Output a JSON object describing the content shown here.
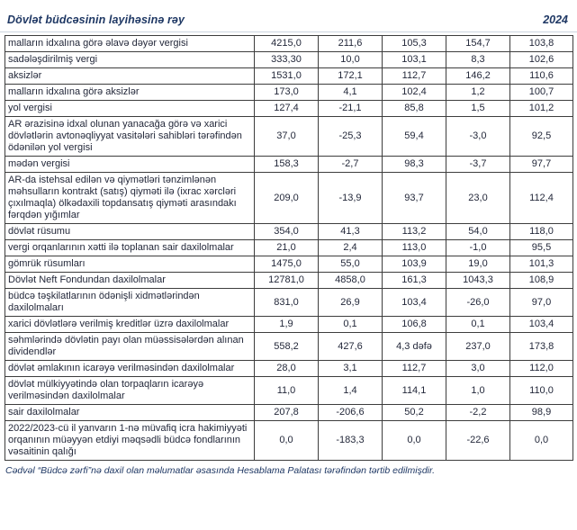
{
  "header": {
    "title": "Dövlət büdcəsinin layihəsinə rəy",
    "year": "2024"
  },
  "colors": {
    "accent": "#1f3864",
    "text": "#23283a",
    "negative": "#e01010",
    "border": "#3d3d3d"
  },
  "table": {
    "rows": [
      {
        "label": "malların idxalına görə əlavə dəyər vergisi",
        "values": [
          "4215,0",
          "211,6",
          "105,3",
          "154,7",
          "103,8"
        ]
      },
      {
        "label": "sadələşdirilmiş vergi",
        "values": [
          "333,30",
          "10,0",
          "103,1",
          "8,3",
          "102,6"
        ]
      },
      {
        "label": "aksizlər",
        "values": [
          "1531,0",
          "172,1",
          "112,7",
          "146,2",
          "110,6"
        ]
      },
      {
        "label": "malların idxalına görə aksizlər",
        "values": [
          "173,0",
          "4,1",
          "102,4",
          "1,2",
          "100,7"
        ]
      },
      {
        "label": "yol vergisi",
        "values": [
          "127,4",
          "-21,1",
          "85,8",
          "1,5",
          "101,2"
        ]
      },
      {
        "label": "AR ərazisinə idxal olunan yanacağa görə və xarici dövlətlərin avtonəqliyyat vasitələri sahibləri tərəfindən ödənilən yol vergisi",
        "values": [
          "37,0",
          "-25,3",
          "59,4",
          "-3,0",
          "92,5"
        ]
      },
      {
        "label": "mədən vergisi",
        "values": [
          "158,3",
          "-2,7",
          "98,3",
          "-3,7",
          "97,7"
        ]
      },
      {
        "label": "AR-da istehsal edilən və qiymətləri tənzimlənən məhsulların kontrakt (satış) qiyməti ilə (ixrac xərcləri çıxılmaqla) ölkədaxili topdansatış qiyməti arasındakı fərqdən yığımlar",
        "values": [
          "209,0",
          "-13,9",
          "93,7",
          "23,0",
          "112,4"
        ]
      },
      {
        "label": "dövlət rüsumu",
        "values": [
          "354,0",
          "41,3",
          "113,2",
          "54,0",
          "118,0"
        ]
      },
      {
        "label": "vergi orqanlarının xətti ilə toplanan sair daxilolmalar",
        "values": [
          "21,0",
          "2,4",
          "113,0",
          "-1,0",
          "95,5"
        ]
      },
      {
        "label": "gömrük rüsumları",
        "values": [
          "1475,0",
          "55,0",
          "103,9",
          "19,0",
          "101,3"
        ]
      },
      {
        "label": "Dövlət Neft Fondundan daxilolmalar",
        "values": [
          "12781,0",
          "4858,0",
          "161,3",
          "1043,3",
          "108,9"
        ]
      },
      {
        "label": "büdcə təşkilatlarının ödənişli xidmətlərindən daxilolmaları",
        "values": [
          "831,0",
          "26,9",
          "103,4",
          "-26,0",
          "97,0"
        ]
      },
      {
        "label": "xarici dövlətlərə verilmiş kreditlər üzrə daxilolmalar",
        "values": [
          "1,9",
          "0,1",
          "106,8",
          "0,1",
          "103,4"
        ]
      },
      {
        "label": "səhmlərində dövlətin payı olan müəssisələrdən alınan dividendlər",
        "values": [
          "558,2",
          "427,6",
          "4,3 dəfə",
          "237,0",
          "173,8"
        ]
      },
      {
        "label": "dövlət əmlakının icarəyə verilməsindən daxilolmalar",
        "values": [
          "28,0",
          "3,1",
          "112,7",
          "3,0",
          "112,0"
        ]
      },
      {
        "label": "dövlət mülkiyyətində olan torpaqların icarəyə verilməsindən daxilolmalar",
        "values": [
          "11,0",
          "1,4",
          "114,1",
          "1,0",
          "110,0"
        ]
      },
      {
        "label": "sair daxilolmalar",
        "values": [
          "207,8",
          "-206,6",
          "50,2",
          "-2,2",
          "98,9"
        ]
      },
      {
        "label": "2022/2023-cü il yanvarın 1-nə müvafiq icra hakimiyyəti orqanının müəyyən etdiyi məqsədli büdcə fondlarının vəsaitinin qalığı",
        "values": [
          "0,0",
          "-183,3",
          "0,0",
          "-22,6",
          "0,0"
        ]
      }
    ]
  },
  "footer": {
    "note": "Cədvəl “Büdcə zərfi”nə daxil olan məlumatlar əsasında Hesablama Palatası tərəfindən tərtib edilmişdir."
  }
}
